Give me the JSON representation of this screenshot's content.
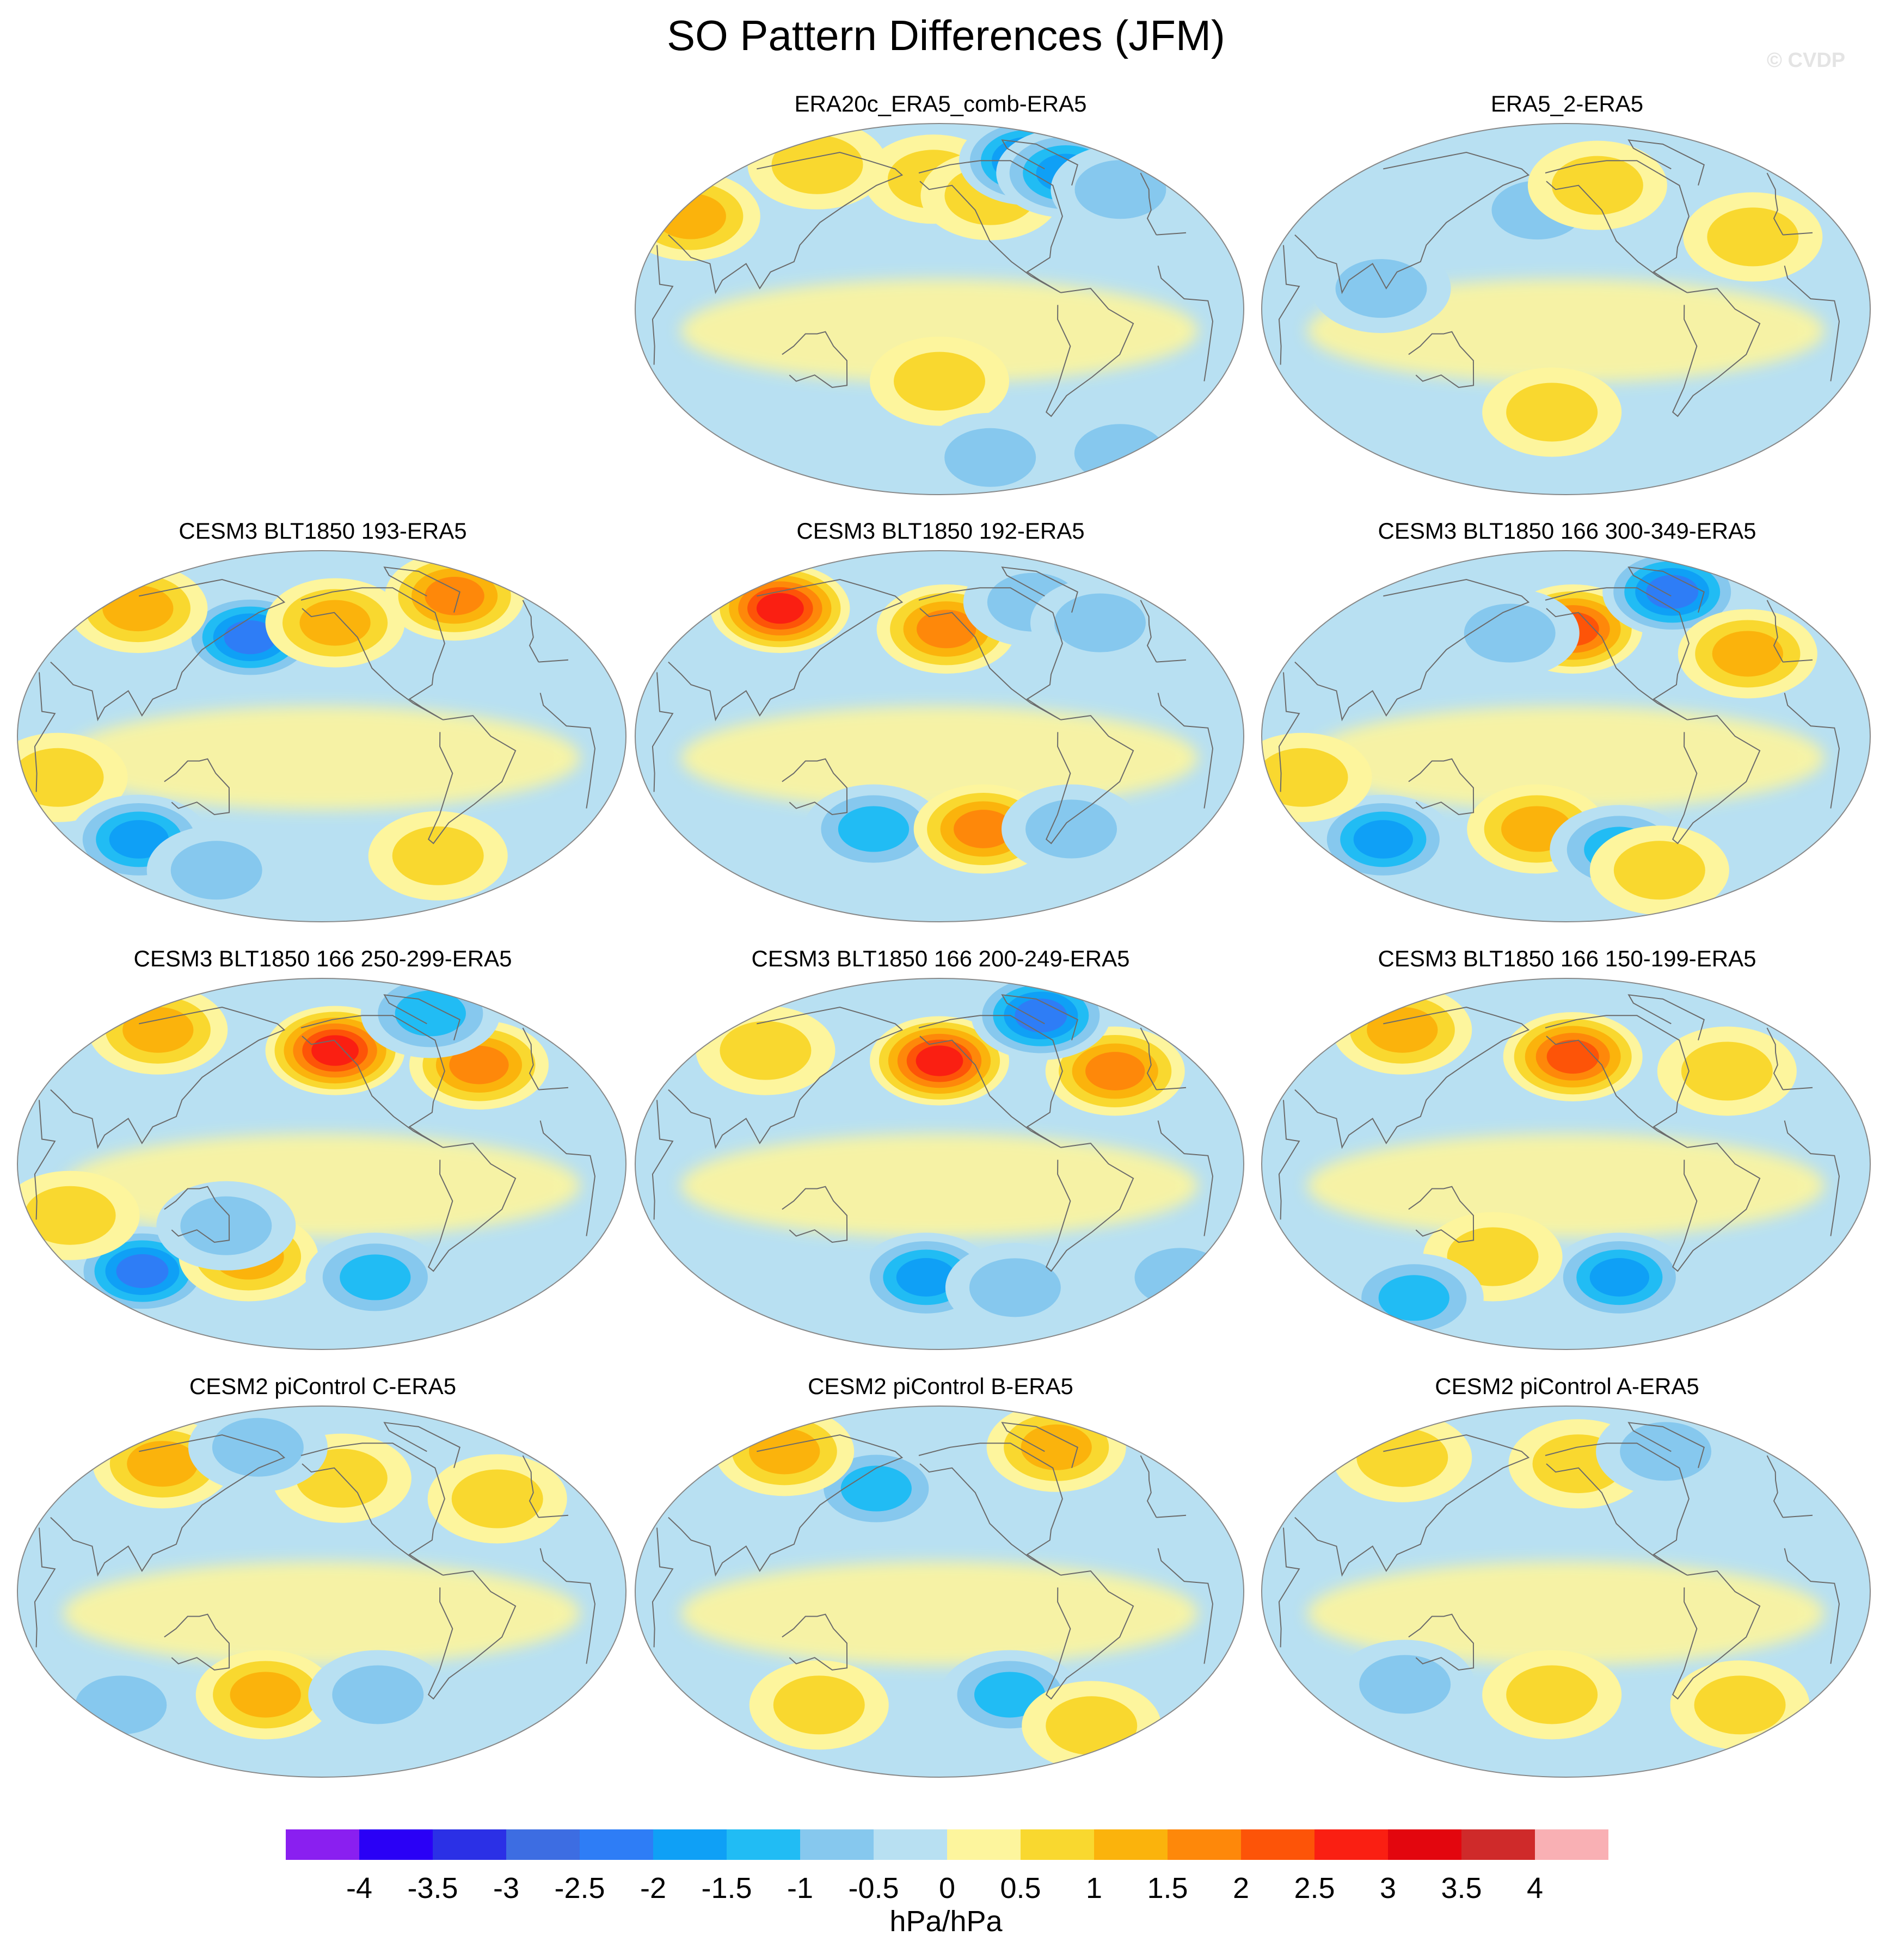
{
  "title": "SO Pattern Differences (JFM)",
  "watermark": "© CVDP",
  "panels": [
    {
      "label": "ERA20c_ERA5_comb-ERA5",
      "row": 0,
      "col": 1,
      "features": [
        {
          "lon": 40,
          "lat": 45,
          "value": 1.1
        },
        {
          "lon": 95,
          "lat": 70,
          "value": 1.0
        },
        {
          "lon": -155,
          "lat": 63,
          "value": 1.0
        },
        {
          "lon": -112,
          "lat": 55,
          "value": 0.9
        },
        {
          "lon": -62,
          "lat": 72,
          "value": -2.4
        },
        {
          "lon": -40,
          "lat": 66,
          "value": -1.8
        },
        {
          "lon": -10,
          "lat": 58,
          "value": -0.7
        },
        {
          "lon": -150,
          "lat": -35,
          "value": 0.6
        },
        {
          "lon": 20,
          "lat": -70,
          "value": -0.9
        },
        {
          "lon": -100,
          "lat": -72,
          "value": -0.9
        }
      ]
    },
    {
      "label": "ERA5_2-ERA5",
      "row": 0,
      "col": 2,
      "features": [
        {
          "lon": -170,
          "lat": 48,
          "value": -0.9
        },
        {
          "lon": -125,
          "lat": 60,
          "value": 0.7
        },
        {
          "lon": -30,
          "lat": 35,
          "value": 0.6
        },
        {
          "lon": 100,
          "lat": 10,
          "value": -0.6
        },
        {
          "lon": -160,
          "lat": -50,
          "value": 0.6
        }
      ]
    },
    {
      "label": "CESM3 BLT1850 193-ERA5",
      "row": 1,
      "col": 0,
      "features": [
        {
          "lon": 160,
          "lat": 48,
          "value": -2.1
        },
        {
          "lon": -140,
          "lat": 55,
          "value": 1.3
        },
        {
          "lon": -30,
          "lat": 68,
          "value": 1.6
        },
        {
          "lon": 60,
          "lat": 62,
          "value": 1.2
        },
        {
          "lon": 50,
          "lat": -20,
          "value": 1.0
        },
        {
          "lon": 80,
          "lat": -50,
          "value": -1.6
        },
        {
          "lon": -60,
          "lat": -58,
          "value": 1.0
        },
        {
          "lon": 120,
          "lat": -65,
          "value": -1.0
        }
      ]
    },
    {
      "label": "CESM3 BLT1850 192-ERA5",
      "row": 1,
      "col": 1,
      "features": [
        {
          "lon": 80,
          "lat": 62,
          "value": 2.6
        },
        {
          "lon": -145,
          "lat": 52,
          "value": 2.0
        },
        {
          "lon": -70,
          "lat": 65,
          "value": -1.0
        },
        {
          "lon": -30,
          "lat": 55,
          "value": -1.0
        },
        {
          "lon": 165,
          "lat": -45,
          "value": -1.3
        },
        {
          "lon": -120,
          "lat": -45,
          "value": 1.6
        },
        {
          "lon": -60,
          "lat": -45,
          "value": -0.7
        }
      ]
    },
    {
      "label": "CESM3 BLT1850 166 300-349-ERA5",
      "row": 1,
      "col": 2,
      "features": [
        {
          "lon": -145,
          "lat": 52,
          "value": 2.1
        },
        {
          "lon": -50,
          "lat": 70,
          "value": -2.4
        },
        {
          "lon": -30,
          "lat": 40,
          "value": 1.5
        },
        {
          "lon": 170,
          "lat": 50,
          "value": -0.8
        },
        {
          "lon": 80,
          "lat": -50,
          "value": -1.8
        },
        {
          "lon": -170,
          "lat": -45,
          "value": 1.1
        },
        {
          "lon": -110,
          "lat": -55,
          "value": -1.4
        },
        {
          "lon": 50,
          "lat": -20,
          "value": 1.0
        },
        {
          "lon": -70,
          "lat": -65,
          "value": 0.8
        }
      ]
    },
    {
      "label": "CESM3 BLT1850 166 250-299-ERA5",
      "row": 2,
      "col": 0,
      "features": [
        {
          "lon": -140,
          "lat": 55,
          "value": 3.0
        },
        {
          "lon": -40,
          "lat": 48,
          "value": 1.8
        },
        {
          "lon": -40,
          "lat": 73,
          "value": -1.2
        },
        {
          "lon": 70,
          "lat": 65,
          "value": 1.2
        },
        {
          "lon": 80,
          "lat": -52,
          "value": -2.3
        },
        {
          "lon": 160,
          "lat": -45,
          "value": 1.4
        },
        {
          "lon": -110,
          "lat": -55,
          "value": -1.1
        },
        {
          "lon": 55,
          "lat": -25,
          "value": 1.0
        },
        {
          "lon": 150,
          "lat": -30,
          "value": -0.9
        }
      ]
    },
    {
      "label": "CESM3 BLT1850 166 200-249-ERA5",
      "row": 2,
      "col": 1,
      "features": [
        {
          "lon": -150,
          "lat": 50,
          "value": 3.0
        },
        {
          "lon": -30,
          "lat": 45,
          "value": 1.7
        },
        {
          "lon": -50,
          "lat": 72,
          "value": -2.5
        },
        {
          "lon": 80,
          "lat": 55,
          "value": 0.8
        },
        {
          "lon": -160,
          "lat": -55,
          "value": -1.6
        },
        {
          "lon": 30,
          "lat": -55,
          "value": -0.8
        },
        {
          "lon": -90,
          "lat": -60,
          "value": -0.8
        }
      ]
    },
    {
      "label": "CESM3 BLT1850 166 150-199-ERA5",
      "row": 2,
      "col": 2,
      "features": [
        {
          "lon": -145,
          "lat": 52,
          "value": 2.3
        },
        {
          "lon": 70,
          "lat": 65,
          "value": 1.3
        },
        {
          "lon": -40,
          "lat": 45,
          "value": 0.9
        },
        {
          "lon": -110,
          "lat": -55,
          "value": -1.7
        },
        {
          "lon": 160,
          "lat": -45,
          "value": 1.0
        },
        {
          "lon": 80,
          "lat": -65,
          "value": -1.2
        }
      ]
    },
    {
      "label": "CESM2 piControl C-ERA5",
      "row": 3,
      "col": 0,
      "features": [
        {
          "lon": 80,
          "lat": 62,
          "value": 1.3
        },
        {
          "lon": -135,
          "lat": 55,
          "value": 0.8
        },
        {
          "lon": -30,
          "lat": 45,
          "value": 0.9
        },
        {
          "lon": 150,
          "lat": 70,
          "value": -1.0
        },
        {
          "lon": 170,
          "lat": -50,
          "value": 1.2
        },
        {
          "lon": 60,
          "lat": -55,
          "value": -0.7
        },
        {
          "lon": -110,
          "lat": -50,
          "value": -0.6
        }
      ]
    },
    {
      "label": "CESM2 piControl B-ERA5",
      "row": 3,
      "col": 1,
      "features": [
        {
          "lon": 165,
          "lat": 50,
          "value": -1.4
        },
        {
          "lon": 70,
          "lat": 68,
          "value": 1.2
        },
        {
          "lon": -40,
          "lat": 70,
          "value": 1.2
        },
        {
          "lon": -100,
          "lat": -50,
          "value": -1.3
        },
        {
          "lon": -20,
          "lat": -65,
          "value": 1.0
        },
        {
          "lon": 120,
          "lat": -55,
          "value": 0.7
        }
      ]
    },
    {
      "label": "CESM2 piControl A-ERA5",
      "row": 3,
      "col": 2,
      "features": [
        {
          "lon": 70,
          "lat": 65,
          "value": 0.9
        },
        {
          "lon": -140,
          "lat": 62,
          "value": 0.9
        },
        {
          "lon": -60,
          "lat": 68,
          "value": -0.7
        },
        {
          "lon": 100,
          "lat": -45,
          "value": -0.8
        },
        {
          "lon": -160,
          "lat": -50,
          "value": 1.0
        },
        {
          "lon": -20,
          "lat": -55,
          "value": 0.6
        }
      ]
    }
  ],
  "colorbar": {
    "tick_labels": [
      "-4",
      "-3.5",
      "-3",
      "-2.5",
      "-2",
      "-1.5",
      "-1",
      "-0.5",
      "0",
      "0.5",
      "1",
      "1.5",
      "2",
      "2.5",
      "3",
      "3.5",
      "4"
    ],
    "levels": [
      -4,
      -3.5,
      -3,
      -2.5,
      -2,
      -1.5,
      -1,
      -0.5,
      0,
      0.5,
      1,
      1.5,
      2,
      2.5,
      3,
      3.5,
      4
    ],
    "colors": [
      "#8a1ff0",
      "#2a00f6",
      "#2b30e6",
      "#3d6de2",
      "#2e7df6",
      "#0fa0f6",
      "#21bcf4",
      "#86c8ee",
      "#b8e0f2",
      "#fdf59d",
      "#f9d82f",
      "#fbb30c",
      "#fe880a",
      "#fd5408",
      "#fa1f12",
      "#e3060e",
      "#cf2a2a",
      "#f9b0b4"
    ],
    "units": "hPa/hPa"
  }
}
